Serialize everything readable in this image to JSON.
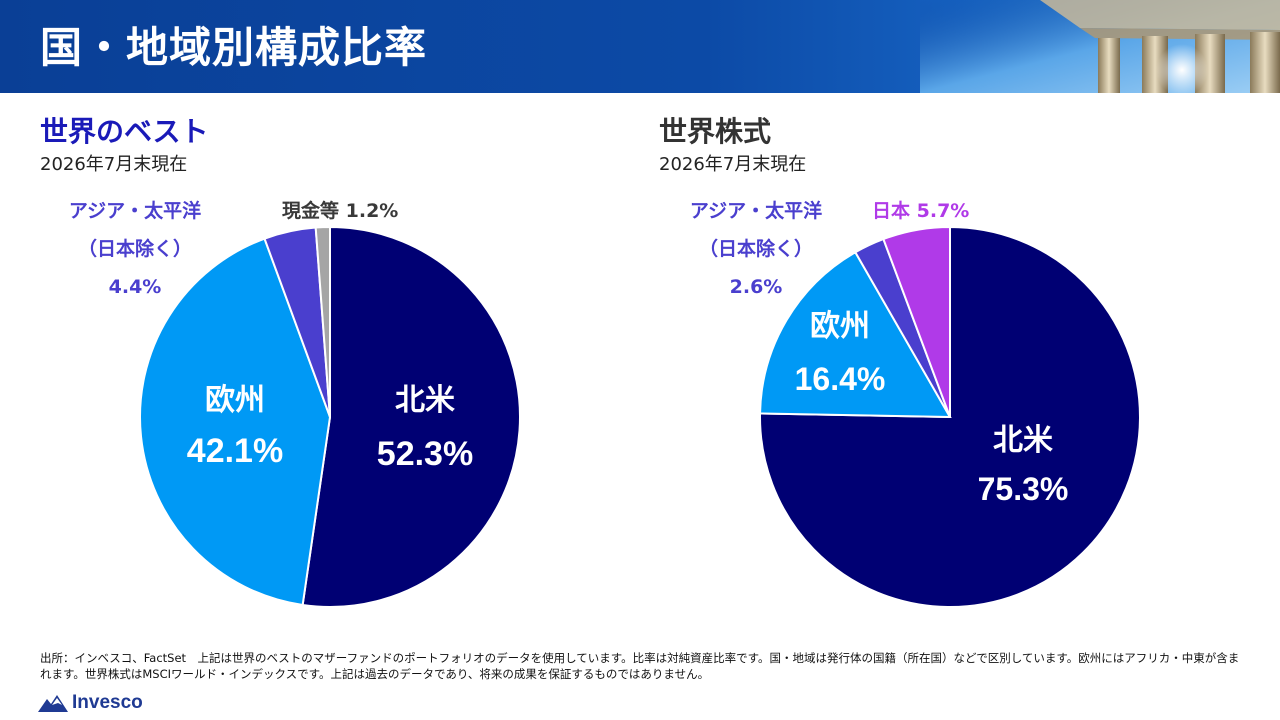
{
  "header": {
    "title": "国・地域別構成比率"
  },
  "chart_data": [
    {
      "type": "pie",
      "title": "世界のベスト",
      "subtitle": "2026年7月末現在",
      "title_color": "#1a1ab8",
      "start_angle_deg": 0,
      "direction": "clockwise",
      "slices": [
        {
          "label": "北米",
          "value_text": "52.3%",
          "value": 52.3,
          "color": "#000073",
          "label_color": "#ffffff"
        },
        {
          "label": "欧州",
          "value_text": "42.1%",
          "value": 42.1,
          "color": "#0099f5",
          "label_color": "#ffffff"
        },
        {
          "label_lines": [
            "アジア・太平洋",
            "（日本除く）"
          ],
          "value_text": "4.4%",
          "value": 4.4,
          "color": "#4a3fce",
          "label_color": "#4a3fce"
        },
        {
          "label": "現金等",
          "value_text": "1.2%",
          "value": 1.2,
          "color": "#a5a5a5",
          "label_color": "#3a3a3a"
        }
      ]
    },
    {
      "type": "pie",
      "title": "世界株式",
      "subtitle": "2026年7月末現在",
      "title_color": "#333333",
      "start_angle_deg": 0,
      "direction": "clockwise",
      "slices": [
        {
          "label": "北米",
          "value_text": "75.3%",
          "value": 75.3,
          "color": "#000073",
          "label_color": "#ffffff"
        },
        {
          "label": "欧州",
          "value_text": "16.4%",
          "value": 16.4,
          "color": "#0099f5",
          "label_color": "#ffffff"
        },
        {
          "label_lines": [
            "アジア・太平洋",
            "（日本除く）"
          ],
          "value_text": "2.6%",
          "value": 2.6,
          "color": "#4a3fce",
          "label_color": "#4a3fce"
        },
        {
          "label": "日本",
          "value_text": "5.7%",
          "value": 5.7,
          "color": "#b03ae8",
          "label_color": "#b03ae8"
        }
      ]
    }
  ],
  "footnote": {
    "text": "出所：インベスコ、FactSet　上記は世界のベストのマザーファンドのポートフォリオのデータを使用しています。比率は対純資産比率です。国・地域は発行体の国籍（所在国）などで区別しています。欧州にはアフリカ・中東が含まれます。世界株式はMSCIワールド・インデックスです。上記は過去のデータであり、将来の成果を保証するものではありません。"
  },
  "brand": {
    "name": "Invesco",
    "logo_icon": "invesco-mountain-icon",
    "color": "#1f3a93"
  }
}
